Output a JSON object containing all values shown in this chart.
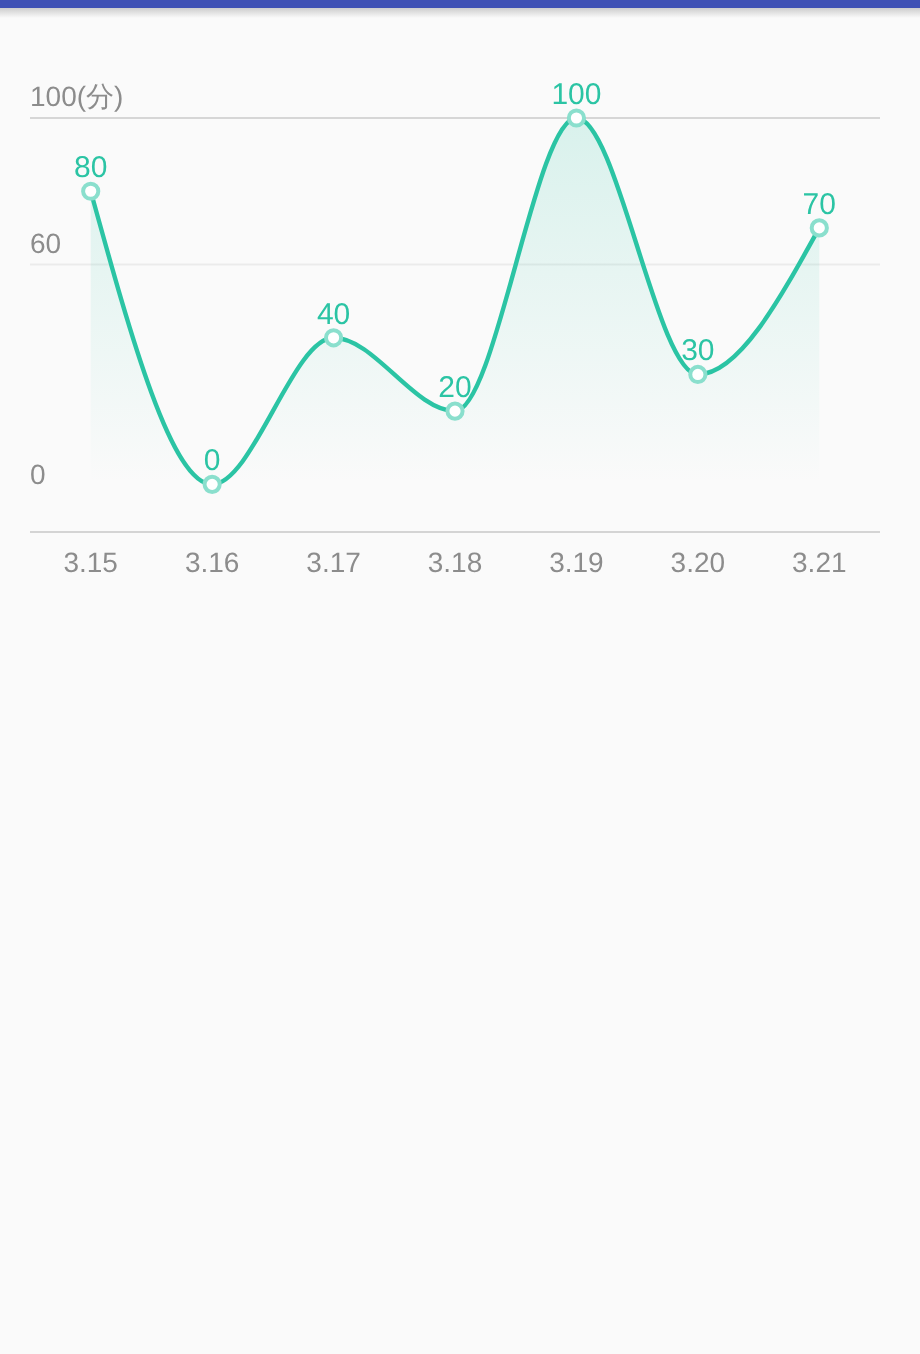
{
  "chart_data": {
    "type": "area",
    "categories": [
      "3.15",
      "3.16",
      "3.17",
      "3.18",
      "3.19",
      "3.20",
      "3.21"
    ],
    "values": [
      80,
      0,
      40,
      20,
      100,
      30,
      70
    ],
    "color": "#2bc4a4",
    "ylim": [
      -13,
      100
    ],
    "ref_lines": [
      {
        "axis": "y",
        "value": 100,
        "label": "100(分)",
        "color": "#d6d6d6"
      },
      {
        "axis": "y",
        "value": 60,
        "label": "60",
        "color": "#ebebeb"
      }
    ],
    "annotations": [
      "0"
    ],
    "data_labels": true,
    "marker": "circle",
    "line_style": "solid"
  }
}
